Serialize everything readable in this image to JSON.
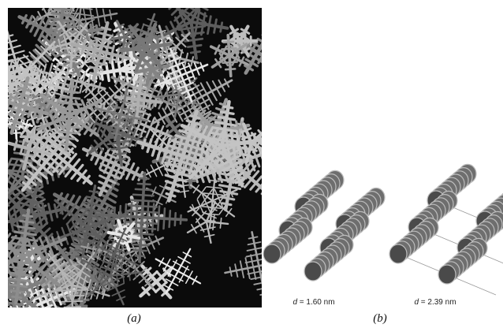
{
  "panels": [
    {
      "label": "(a)"
    },
    {
      "label": "(b)",
      "structures": [
        {
          "symbol": "d",
          "text": "= 1.60 nm"
        },
        {
          "symbol": "d",
          "text": "= 2.39 nm"
        }
      ]
    }
  ]
}
